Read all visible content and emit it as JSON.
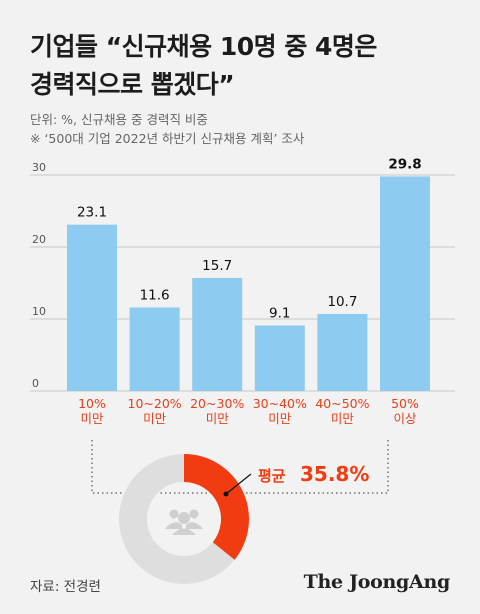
{
  "header": {
    "title_line1": "기업들 “신규채용 10명 중 4명은",
    "title_line2": "경력직으로 뽑겠다”",
    "unit_note": "단위: %, 신규채용 중 경력직 비중",
    "survey_note": "※ ‘500대 기업 2022년 하반기 신규채용 계획’ 조사"
  },
  "chart_data": {
    "type": "bar",
    "categories": [
      [
        "10%",
        "미만"
      ],
      [
        "10~20%",
        "미만"
      ],
      [
        "20~30%",
        "미만"
      ],
      [
        "30~40%",
        "미만"
      ],
      [
        "40~50%",
        "미만"
      ],
      [
        "50%",
        "이상"
      ]
    ],
    "values": [
      23.1,
      11.6,
      15.7,
      9.1,
      10.7,
      29.8
    ],
    "value_labels": [
      "23.1",
      "11.6",
      "15.7",
      "9.1",
      "10.7",
      "29.8"
    ],
    "yticks": [
      0,
      10,
      20,
      30
    ],
    "ytick_labels": [
      "0",
      "10",
      "20",
      "30"
    ],
    "ylim": [
      0,
      30
    ],
    "grid": true,
    "bar_color": "#8dcbf0",
    "category_label_color": "#e8401c",
    "average": {
      "label": "평균",
      "value_label": "35.8%",
      "value": 35.8,
      "highlight_color": "#f03c10",
      "rest_color": "#dedede",
      "icon": "people-group-icon"
    }
  },
  "footer": {
    "source": "자료: 전경련",
    "brand": "The JoongAng"
  }
}
